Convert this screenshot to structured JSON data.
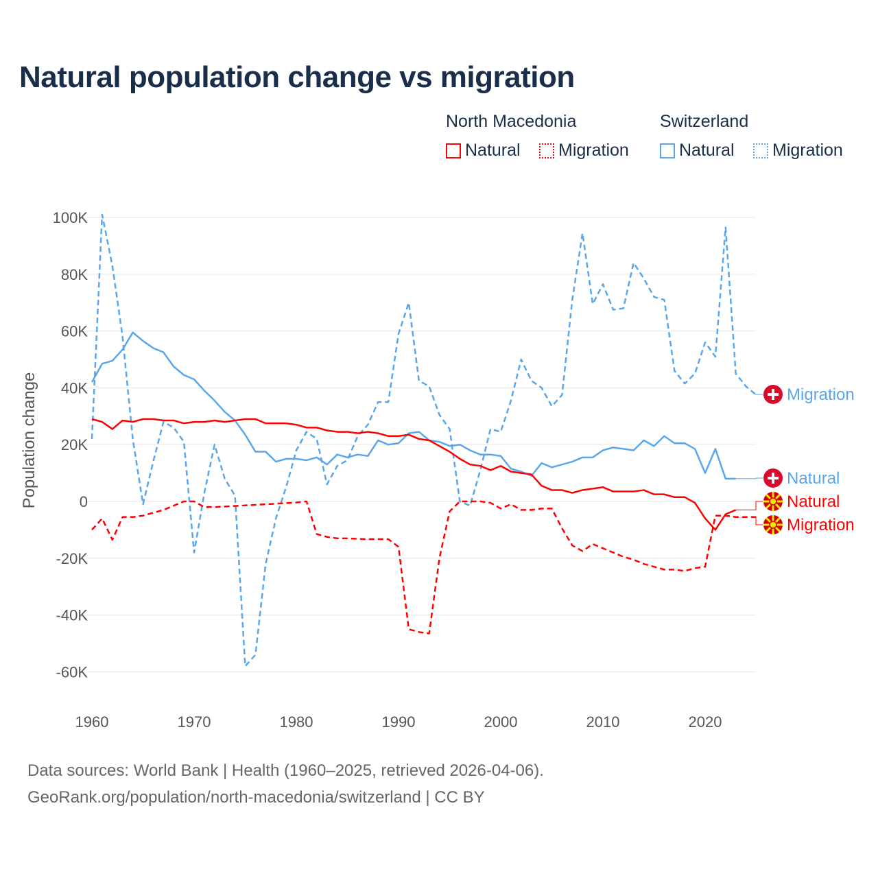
{
  "title": "Natural population change vs migration",
  "legend": {
    "groups": [
      {
        "country": "North Macedonia",
        "items": [
          "Natural",
          "Migration"
        ],
        "color": "#ff0000"
      },
      {
        "country": "Switzerland",
        "items": [
          "Natural",
          "Migration"
        ],
        "color": "#5aa6ea"
      }
    ]
  },
  "footer": {
    "line1": "Data sources: World Bank | Health (1960–2025, retrieved 2026-04-06).",
    "line2": "GeoRank.org/population/north-macedonia/switzerland | CC BY"
  },
  "chart_data": {
    "type": "line",
    "title": "Natural population change vs migration",
    "xlabel": "",
    "ylabel": "Population change",
    "xlim": [
      1960,
      2025
    ],
    "ylim": [
      -70000,
      100000
    ],
    "xticks": [
      1960,
      1970,
      1980,
      1990,
      2000,
      2010,
      2020
    ],
    "yticks": [
      {
        "v": 100000,
        "l": "100K"
      },
      {
        "v": 80000,
        "l": "80K"
      },
      {
        "v": 60000,
        "l": "60K"
      },
      {
        "v": 40000,
        "l": "40K"
      },
      {
        "v": 20000,
        "l": "20K"
      },
      {
        "v": 0,
        "l": "0"
      },
      {
        "v": -20000,
        "l": "-20K"
      },
      {
        "v": -40000,
        "l": "-40K"
      },
      {
        "v": -60000,
        "l": "-60K"
      }
    ],
    "grid": true,
    "start_year": 1960,
    "series": [
      {
        "name": "Switzerland Migration",
        "label": "Migration",
        "country": "Switzerland",
        "color": "#5aa6ea",
        "dashed": true,
        "flag": "ch",
        "values_k": [
          22,
          101,
          83,
          58,
          22,
          -1,
          14,
          28,
          26,
          21,
          -18,
          3,
          20,
          8,
          2,
          -58,
          -54,
          -22,
          -6,
          5,
          18,
          24.5,
          22,
          6,
          12.5,
          14.5,
          23,
          27,
          35,
          35,
          59,
          70,
          42.5,
          40.5,
          30.5,
          25.5,
          0,
          -1.5,
          11,
          25.5,
          24.5,
          35.5,
          50,
          42.5,
          40,
          33.5,
          37.5,
          71,
          94.5,
          69.5,
          76.5,
          67.5,
          68,
          84,
          78.5,
          72,
          71,
          46,
          41.5,
          45,
          56,
          51,
          96.5,
          45,
          40.5,
          37.5
        ]
      },
      {
        "name": "Switzerland Natural",
        "label": "Natural",
        "country": "Switzerland",
        "color": "#5aa6ea",
        "dashed": false,
        "flag": "ch",
        "values_k": [
          42,
          48.5,
          49.5,
          53.5,
          59.5,
          56.5,
          54,
          52.5,
          47.5,
          44.5,
          43,
          39,
          35.5,
          31.5,
          28.5,
          23.5,
          17.5,
          17.5,
          14,
          15,
          15,
          14.5,
          15.5,
          13,
          16.5,
          15.5,
          16.5,
          16,
          21.5,
          20,
          20.5,
          24,
          24.5,
          21.5,
          21,
          19.5,
          20,
          18,
          16.5,
          16.5,
          16,
          11.5,
          10.5,
          9,
          13.5,
          12,
          13,
          14,
          15.5,
          15.5,
          18,
          19,
          18.5,
          18,
          21.5,
          19.5,
          23,
          20.5,
          20.5,
          18.5,
          10,
          18.5,
          8,
          8
        ]
      },
      {
        "name": "North Macedonia Natural",
        "label": "Natural",
        "country": "North Macedonia",
        "color": "#ff0000",
        "dashed": false,
        "flag": "mk",
        "values_k": [
          29,
          28,
          25.5,
          28.5,
          28,
          29,
          29,
          28.5,
          28.5,
          27.5,
          28,
          28,
          28.5,
          28,
          28.5,
          29,
          29,
          27.5,
          27.5,
          27.5,
          27,
          26,
          26,
          25,
          24.5,
          24.5,
          24,
          24.5,
          24,
          23,
          23,
          23.5,
          22,
          21.5,
          19.5,
          17.5,
          15,
          13,
          12.5,
          11,
          12.5,
          10.5,
          10,
          9.5,
          5.5,
          4,
          4,
          3,
          4,
          4.5,
          5,
          3.5,
          3.5,
          3.5,
          4,
          2.5,
          2.5,
          1.5,
          1.5,
          -0.5,
          -6,
          -10,
          -4.5,
          -3
        ]
      },
      {
        "name": "North Macedonia Migration",
        "label": "Migration",
        "country": "North Macedonia",
        "color": "#ff0000",
        "dashed": true,
        "flag": "mk",
        "values_k": [
          -10,
          -6,
          -13.5,
          -5.5,
          -5.5,
          -5,
          -4,
          -3,
          -1.5,
          0,
          0,
          -2,
          -2,
          -1.8,
          -1.6,
          -1.4,
          -1.2,
          -1,
          -0.8,
          -0.6,
          -0.4,
          0,
          -11.5,
          -12.5,
          -13,
          -13,
          -13.2,
          -13.3,
          -13.3,
          -13.3,
          -16,
          -45,
          -46,
          -46.5,
          -20,
          -3.5,
          0,
          0,
          0,
          -0.5,
          -2.5,
          -1,
          -3,
          -3,
          -2.5,
          -2.5,
          -9.5,
          -15.5,
          -17.5,
          -15,
          -16.5,
          -18,
          -19.5,
          -20.5,
          -22,
          -23,
          -24,
          -24,
          -24.5,
          -23.5,
          -23,
          -5,
          -5,
          -5.5,
          -5.5,
          -5.5
        ]
      }
    ]
  }
}
